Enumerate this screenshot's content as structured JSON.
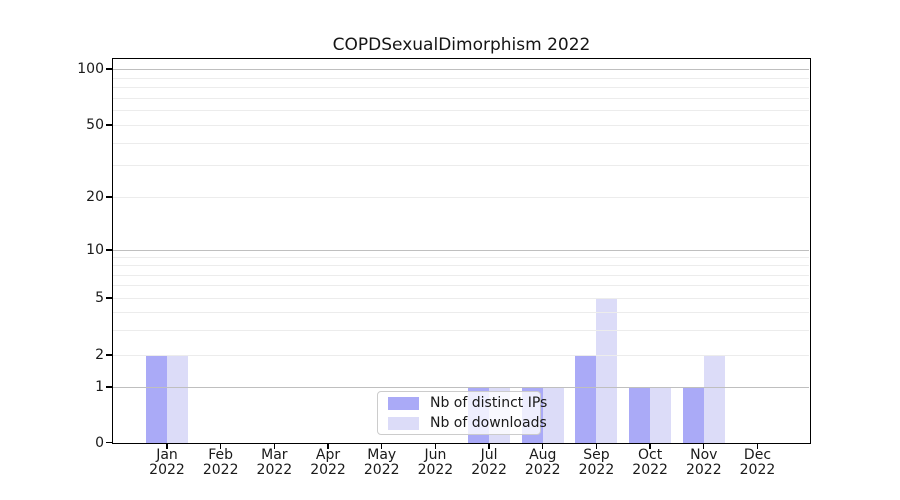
{
  "chart_data": {
    "type": "bar",
    "title": "COPDSexualDimorphism 2022",
    "xlabel": "",
    "ylabel": "",
    "yscale": "symlog",
    "ylim": [
      0,
      113
    ],
    "y_tick_labels": [
      100,
      50,
      20,
      10,
      5,
      2,
      1,
      0
    ],
    "y_major_gridlines": [
      1,
      10,
      100
    ],
    "y_minor_gridlines": [
      2,
      3,
      4,
      5,
      6,
      7,
      8,
      9,
      20,
      30,
      40,
      50,
      60,
      70,
      80,
      90
    ],
    "grid": true,
    "categories": [
      {
        "month": "Jan",
        "year": "2022"
      },
      {
        "month": "Feb",
        "year": "2022"
      },
      {
        "month": "Mar",
        "year": "2022"
      },
      {
        "month": "Apr",
        "year": "2022"
      },
      {
        "month": "May",
        "year": "2022"
      },
      {
        "month": "Jun",
        "year": "2022"
      },
      {
        "month": "Jul",
        "year": "2022"
      },
      {
        "month": "Aug",
        "year": "2022"
      },
      {
        "month": "Sep",
        "year": "2022"
      },
      {
        "month": "Oct",
        "year": "2022"
      },
      {
        "month": "Nov",
        "year": "2022"
      },
      {
        "month": "Dec",
        "year": "2022"
      }
    ],
    "series": [
      {
        "name": "Nb of distinct IPs",
        "color": "#aaaaf7",
        "values": [
          2,
          0,
          0,
          0,
          0,
          0,
          1,
          1,
          2,
          1,
          1,
          0
        ]
      },
      {
        "name": "Nb of downloads",
        "color": "#dcdcf8",
        "values": [
          2,
          0,
          0,
          0,
          0,
          0,
          1,
          1,
          5,
          1,
          2,
          0
        ]
      }
    ],
    "legend": {
      "position": "lower center",
      "entries": [
        "Nb of distinct IPs",
        "Nb of downloads"
      ]
    }
  },
  "colors": {
    "spine": "#000000",
    "grid_major": "#bfbfbf",
    "grid_minor": "#ececec",
    "background": "#ffffff"
  }
}
